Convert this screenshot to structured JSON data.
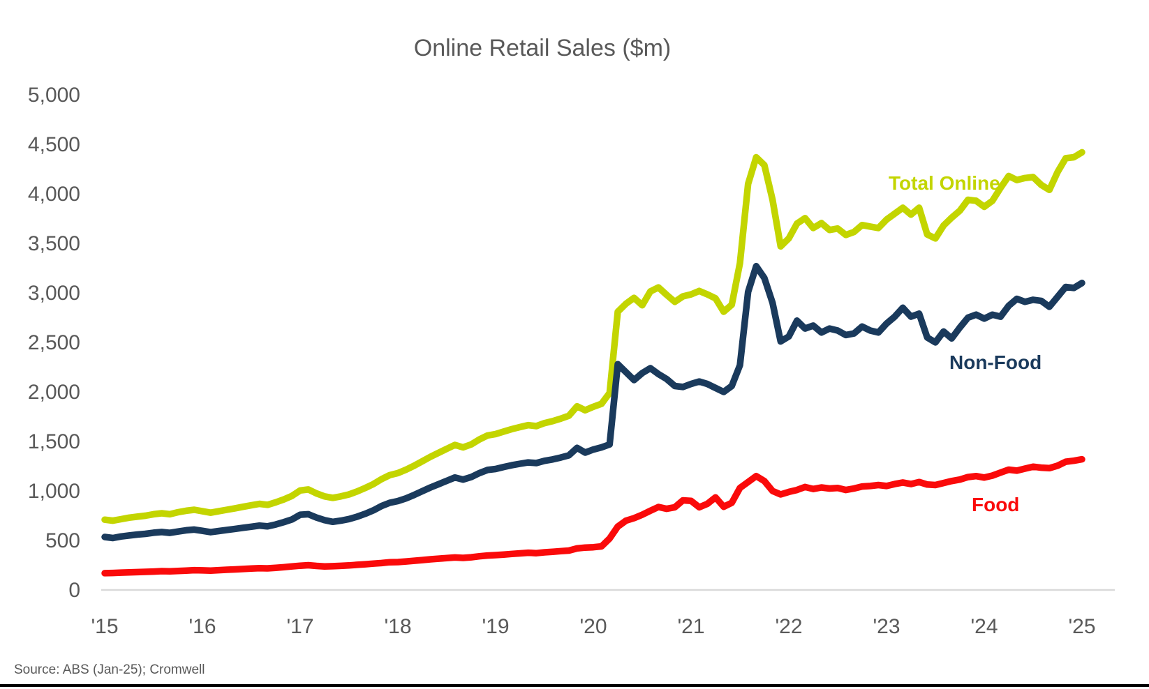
{
  "chart_data": {
    "type": "line",
    "title": "Online Retail Sales ($m)",
    "source": "Source: ABS (Jan-25); Cromwell",
    "x_range": {
      "start": "2015-01",
      "end": "2025-01",
      "frequency": "monthly",
      "points": 121
    },
    "x_tick_labels": [
      "'15",
      "'16",
      "'17",
      "'18",
      "'19",
      "'20",
      "'21",
      "'22",
      "'23",
      "'24",
      "'25"
    ],
    "y_ticks": [
      0,
      500,
      1000,
      1500,
      2000,
      2500,
      3000,
      3500,
      4000,
      4500,
      5000
    ],
    "y_tick_labels": [
      "0",
      "500",
      "1,000",
      "1,500",
      "2,000",
      "2,500",
      "3,000",
      "3,500",
      "4,000",
      "4,500",
      "5,000"
    ],
    "ylim": [
      0,
      5000
    ],
    "grid": "off",
    "legend": "inline-labels",
    "colors": {
      "total_online": "#C3D500",
      "non_food": "#1A3A5C",
      "food": "#FA0A0A",
      "text_gray": "#595959",
      "axis_line": "#D9D9D9",
      "bottom_rule": "#000000"
    },
    "series": [
      {
        "name": "Total Online",
        "color": "#C3D500",
        "values": [
          710,
          700,
          715,
          730,
          740,
          750,
          765,
          775,
          765,
          785,
          800,
          810,
          795,
          780,
          795,
          810,
          825,
          840,
          855,
          870,
          860,
          885,
          915,
          950,
          1005,
          1015,
          975,
          945,
          930,
          945,
          965,
          995,
          1030,
          1070,
          1120,
          1160,
          1180,
          1215,
          1255,
          1300,
          1345,
          1385,
          1425,
          1465,
          1440,
          1470,
          1520,
          1560,
          1575,
          1600,
          1625,
          1645,
          1665,
          1655,
          1685,
          1705,
          1730,
          1760,
          1855,
          1815,
          1850,
          1880,
          1990,
          2810,
          2890,
          2950,
          2875,
          3015,
          3055,
          2980,
          2910,
          2965,
          2985,
          3020,
          2985,
          2945,
          2810,
          2880,
          3300,
          4100,
          4370,
          4290,
          3940,
          3470,
          3550,
          3700,
          3755,
          3655,
          3705,
          3635,
          3650,
          3585,
          3615,
          3685,
          3670,
          3655,
          3740,
          3800,
          3860,
          3790,
          3860,
          3590,
          3550,
          3680,
          3760,
          3830,
          3940,
          3930,
          3870,
          3930,
          4060,
          4180,
          4140,
          4160,
          4170,
          4090,
          4040,
          4220,
          4360,
          4370,
          4420
        ]
      },
      {
        "name": "Non-Food",
        "color": "#1A3A5C",
        "values": [
          535,
          525,
          540,
          550,
          560,
          567,
          578,
          585,
          577,
          590,
          603,
          610,
          597,
          584,
          595,
          606,
          617,
          628,
          639,
          650,
          642,
          661,
          685,
          712,
          760,
          765,
          732,
          705,
          688,
          700,
          716,
          740,
          770,
          804,
          848,
          880,
          898,
          925,
          960,
          998,
          1035,
          1068,
          1102,
          1136,
          1115,
          1140,
          1180,
          1212,
          1222,
          1242,
          1260,
          1275,
          1288,
          1282,
          1304,
          1318,
          1337,
          1360,
          1435,
          1387,
          1418,
          1440,
          1470,
          2280,
          2200,
          2120,
          2190,
          2240,
          2180,
          2130,
          2060,
          2050,
          2080,
          2105,
          2080,
          2040,
          2000,
          2060,
          2270,
          3010,
          3270,
          3150,
          2900,
          2510,
          2560,
          2720,
          2640,
          2670,
          2600,
          2640,
          2620,
          2575,
          2590,
          2660,
          2620,
          2600,
          2690,
          2760,
          2850,
          2760,
          2790,
          2550,
          2500,
          2610,
          2540,
          2650,
          2750,
          2780,
          2740,
          2780,
          2760,
          2870,
          2940,
          2910,
          2930,
          2920,
          2860,
          2960,
          3060,
          3050,
          3100
        ]
      },
      {
        "name": "Food",
        "color": "#FA0A0A",
        "values": [
          170,
          172,
          175,
          178,
          180,
          183,
          186,
          190,
          188,
          192,
          196,
          200,
          198,
          196,
          200,
          204,
          208,
          212,
          216,
          220,
          218,
          224,
          230,
          238,
          245,
          250,
          243,
          238,
          240,
          244,
          248,
          254,
          260,
          266,
          272,
          280,
          282,
          288,
          295,
          302,
          310,
          316,
          322,
          328,
          324,
          330,
          340,
          348,
          352,
          358,
          364,
          370,
          376,
          372,
          380,
          386,
          392,
          398,
          420,
          428,
          432,
          440,
          520,
          640,
          700,
          725,
          760,
          800,
          838,
          820,
          835,
          905,
          900,
          835,
          870,
          935,
          840,
          880,
          1030,
          1090,
          1150,
          1100,
          1000,
          965,
          990,
          1010,
          1040,
          1020,
          1035,
          1025,
          1030,
          1010,
          1025,
          1045,
          1050,
          1060,
          1050,
          1070,
          1085,
          1070,
          1090,
          1065,
          1060,
          1080,
          1100,
          1115,
          1140,
          1150,
          1135,
          1155,
          1185,
          1215,
          1205,
          1225,
          1245,
          1235,
          1230,
          1255,
          1295,
          1305,
          1320
        ]
      }
    ]
  }
}
